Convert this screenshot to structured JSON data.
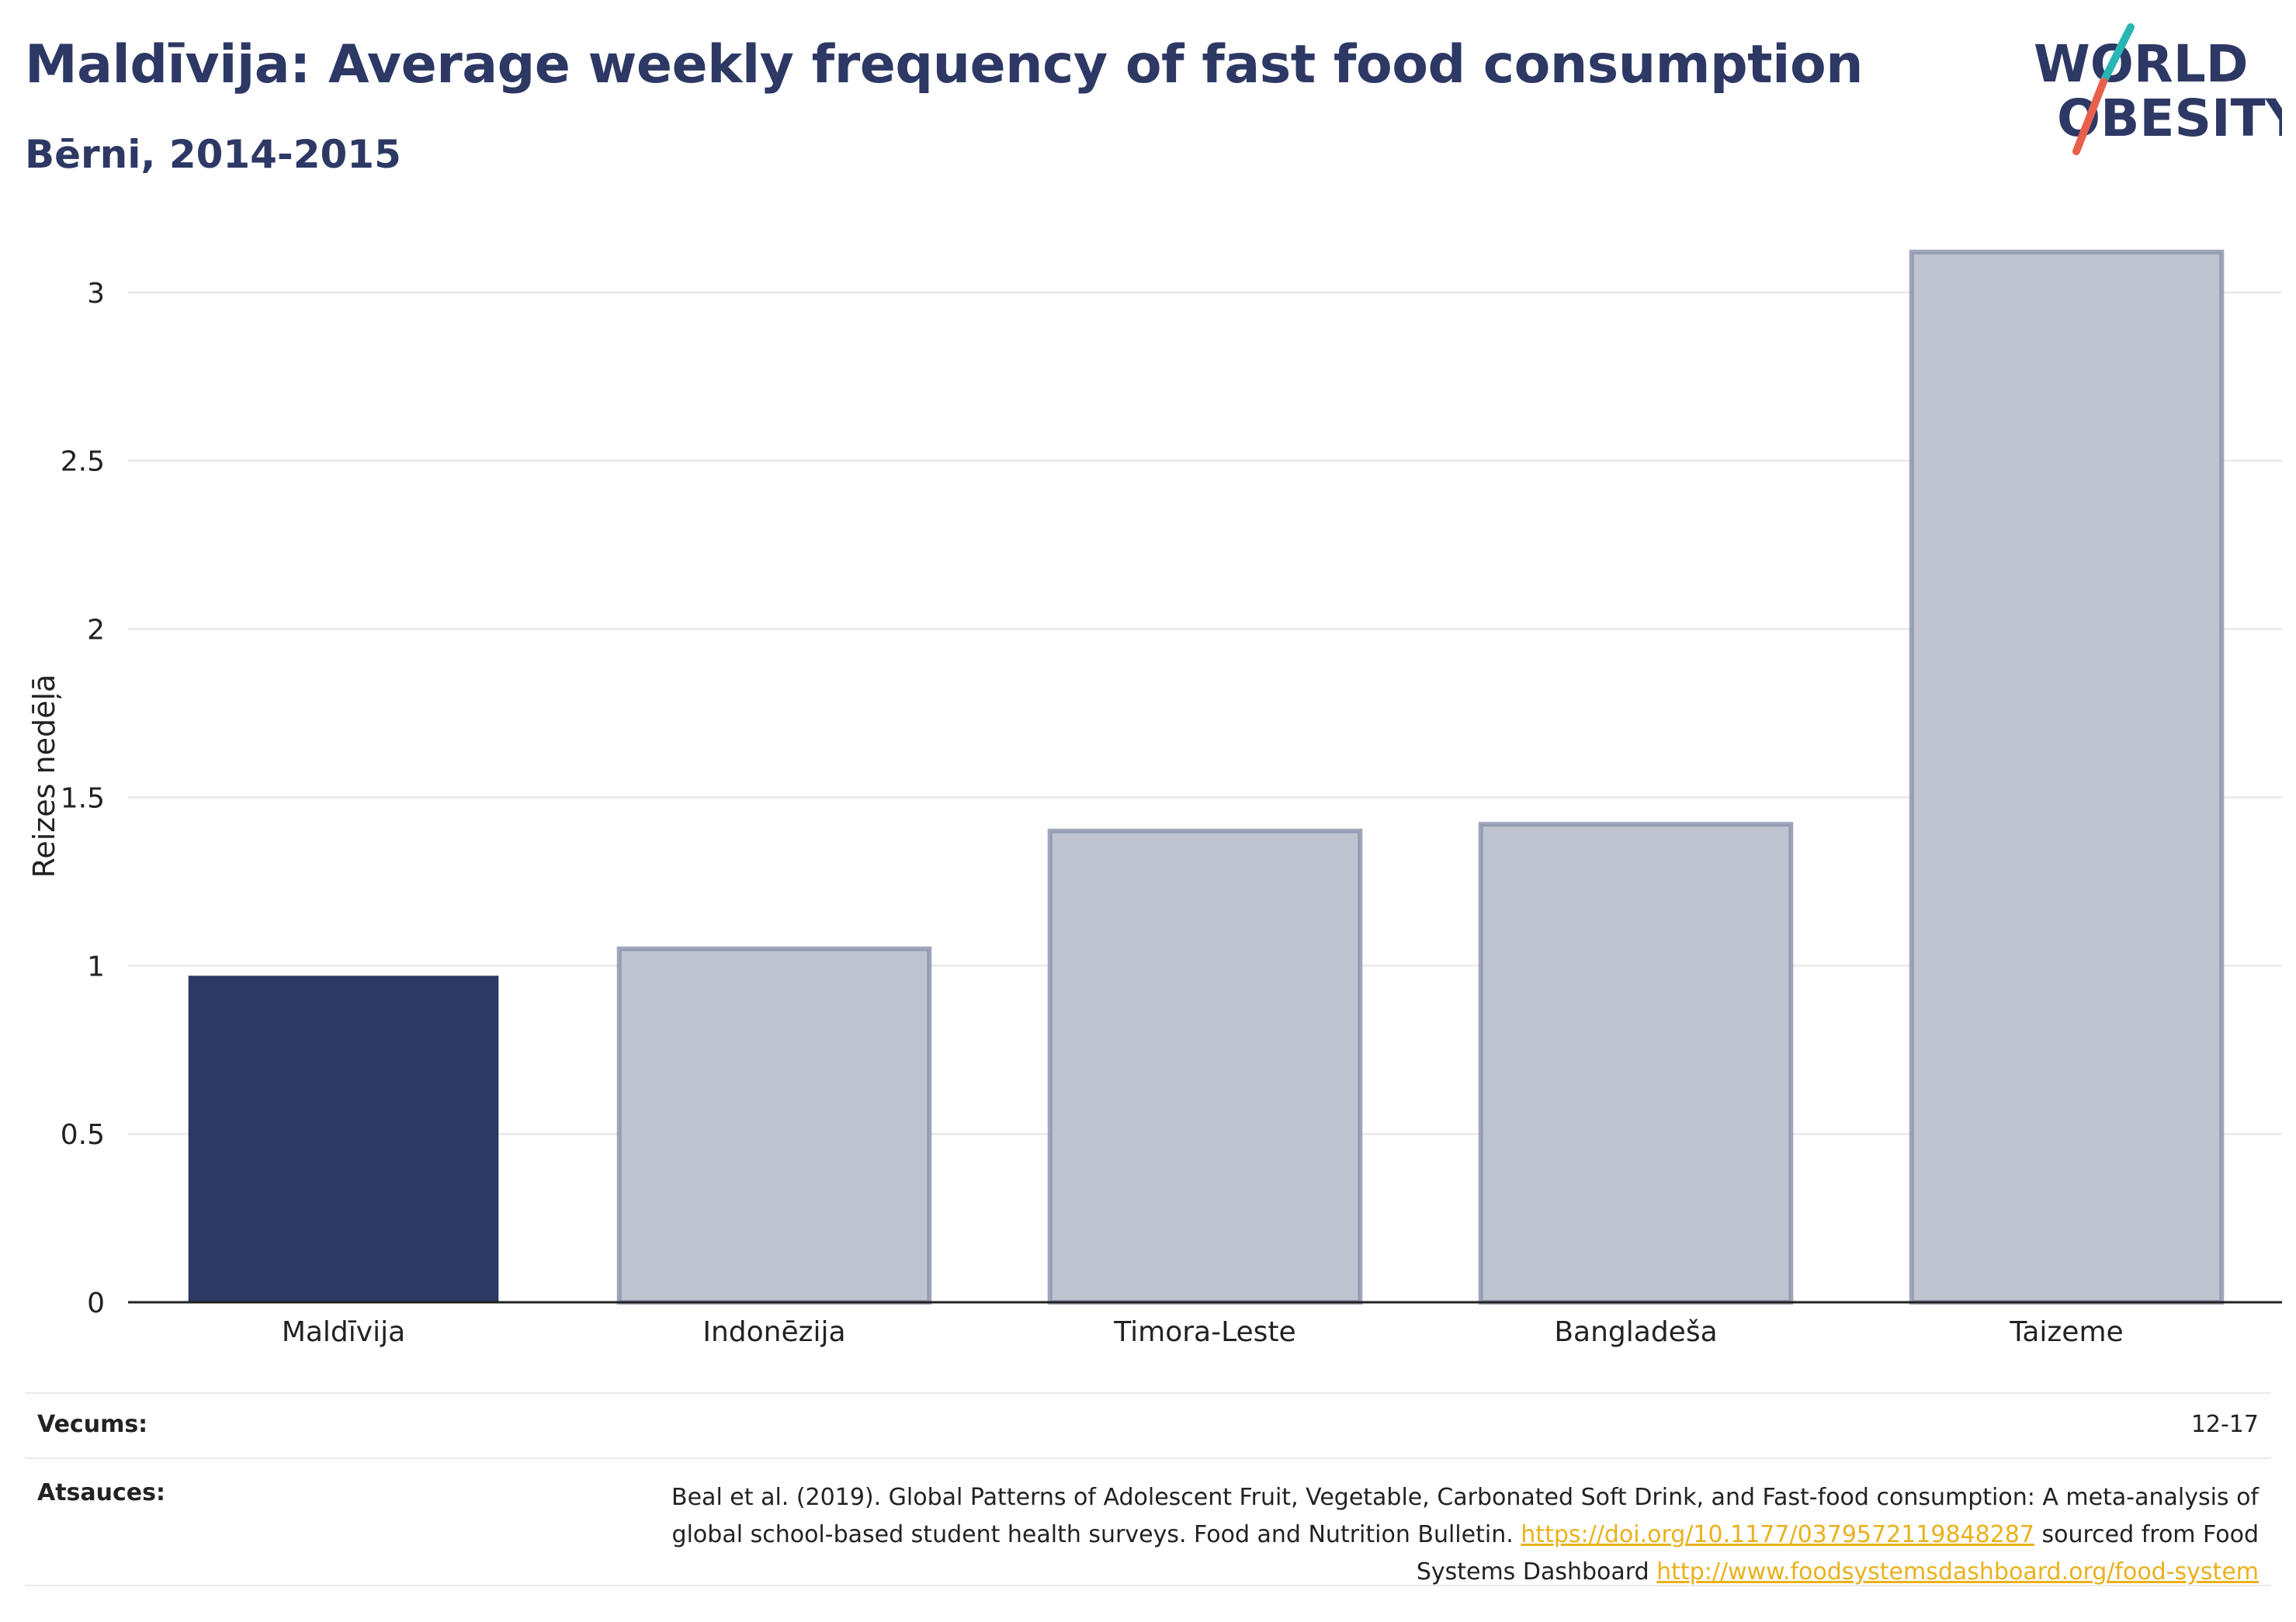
{
  "header": {
    "title": "Maldīvija: Average weekly frequency of fast food consumption",
    "subtitle": "Bērni, 2014-2015"
  },
  "logo": {
    "line1": "WORLD",
    "line2": "OBESITY",
    "colors": {
      "text": "#2d3864",
      "slash_top": "#2ab5b5",
      "slash_bottom": "#e8604c"
    }
  },
  "chart_data": {
    "type": "bar",
    "categories": [
      "Maldīvija",
      "Indonēzija",
      "Timora-Leste",
      "Bangladeša",
      "Taizeme"
    ],
    "values": [
      0.97,
      1.05,
      1.4,
      1.42,
      3.12
    ],
    "highlight": "Maldīvija",
    "ylabel": "Reizes nedēļā",
    "xlabel": "",
    "ylim": [
      0,
      3.2
    ],
    "yticks": [
      0,
      0.5,
      1,
      1.5,
      2,
      2.5,
      3
    ],
    "ytick_labels": [
      "0",
      "0.5",
      "1",
      "1.5",
      "2",
      "2.5",
      "3"
    ],
    "grid": true,
    "colors": {
      "highlight_fill": "#2d3864",
      "other_fill": "#bfc3cf",
      "other_stroke": "#8a91aa",
      "gridline": "#ececec",
      "baseline": "#222222"
    }
  },
  "footer": {
    "age_label": "Vecums:",
    "age_value": "12-17",
    "sources_label": "Atsauces:",
    "sources_text_1": "Beal et al. (2019). Global Patterns of Adolescent Fruit, Vegetable, Carbonated Soft Drink, and Fast-food consumption: A meta-analysis of global school-based student health surveys. Food and Nutrition Bulletin. ",
    "sources_link_1": "https://doi.org/10.1177/0379572119848287",
    "sources_text_2": " sourced from Food Systems Dashboard ",
    "sources_link_2": "http://www.foodsystemsdashboard.org/food-system"
  }
}
